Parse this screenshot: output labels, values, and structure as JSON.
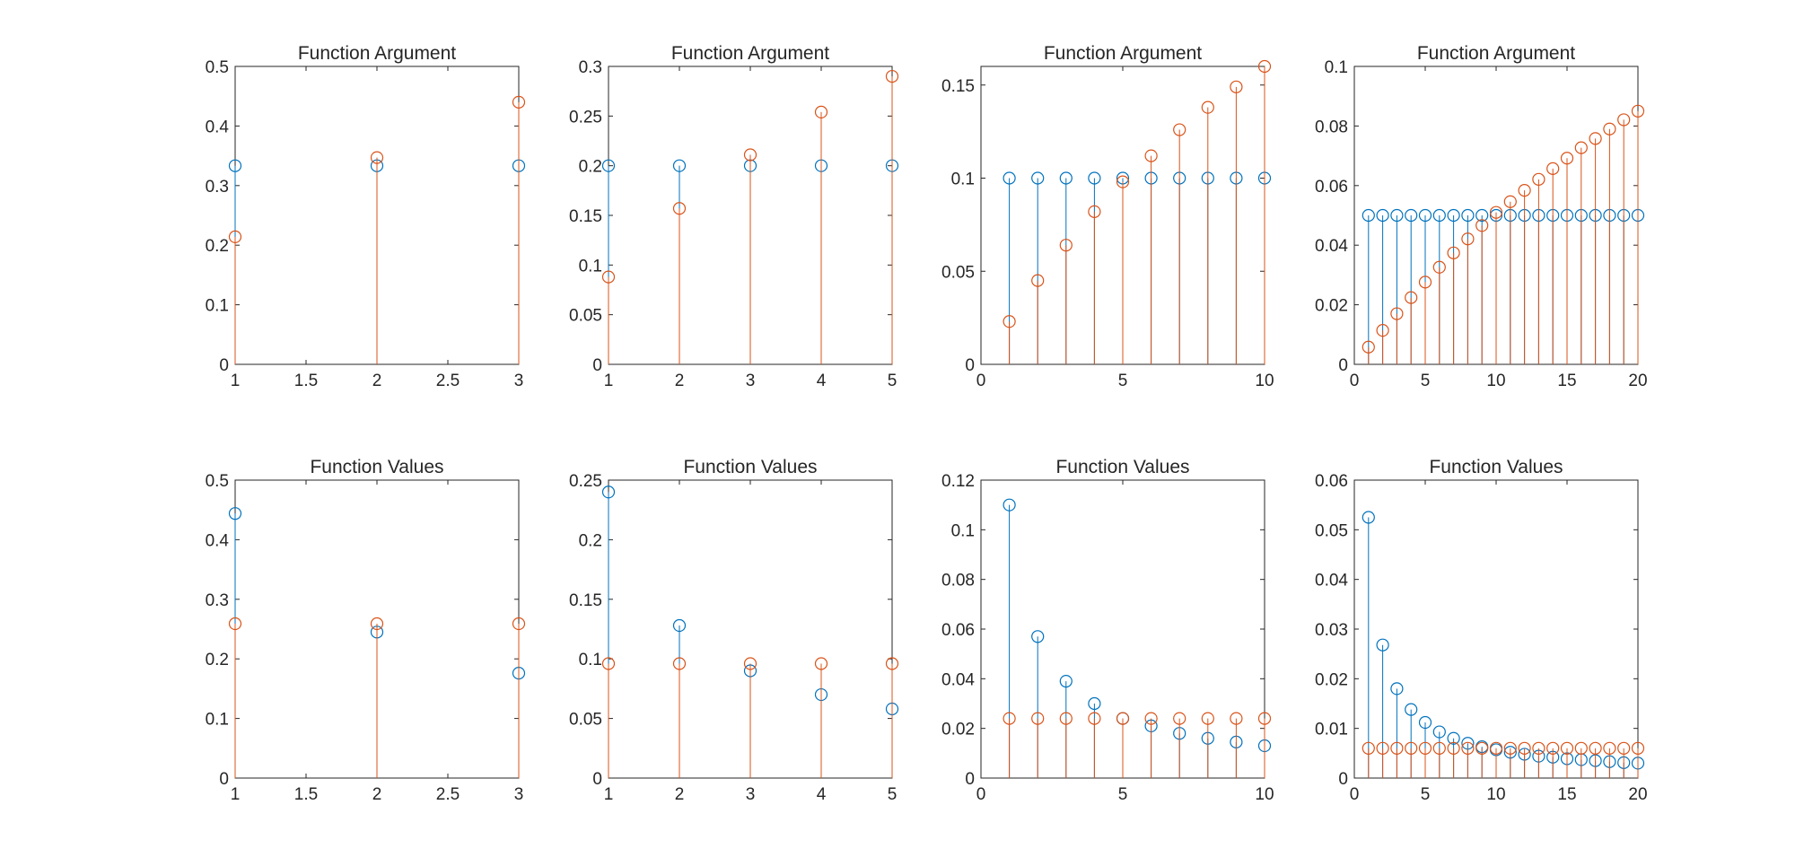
{
  "figure": {
    "colors": {
      "series_a": "#0072BD",
      "series_b": "#D95319",
      "axes": "#262626",
      "background": "#ffffff"
    }
  },
  "chart_data": [
    {
      "type": "stem",
      "title": "Function Argument",
      "xlabel": "",
      "ylabel": "",
      "xlim": [
        1,
        3
      ],
      "ylim": [
        0,
        0.5
      ],
      "xticks": [
        1,
        1.5,
        2,
        2.5,
        3
      ],
      "xtick_labels": [
        "1",
        "1.5",
        "2",
        "2.5",
        "3"
      ],
      "yticks": [
        0,
        0.1,
        0.2,
        0.3,
        0.4,
        0.5
      ],
      "ytick_labels": [
        "0",
        "0.1",
        "0.2",
        "0.3",
        "0.4",
        "0.5"
      ],
      "grid": false,
      "x": [
        1,
        2,
        3
      ],
      "series": [
        {
          "color": "#0072BD",
          "values": [
            0.3333,
            0.3333,
            0.3333
          ]
        },
        {
          "color": "#D95319",
          "values": [
            0.214,
            0.347,
            0.44
          ]
        }
      ]
    },
    {
      "type": "stem",
      "title": "Function Argument",
      "xlabel": "",
      "ylabel": "",
      "xlim": [
        1,
        5
      ],
      "ylim": [
        0,
        0.3
      ],
      "xticks": [
        1,
        2,
        3,
        4,
        5
      ],
      "xtick_labels": [
        "1",
        "2",
        "3",
        "4",
        "5"
      ],
      "yticks": [
        0,
        0.05,
        0.1,
        0.15,
        0.2,
        0.25,
        0.3
      ],
      "ytick_labels": [
        "0",
        "0.05",
        "0.1",
        "0.15",
        "0.2",
        "0.25",
        "0.3"
      ],
      "grid": false,
      "x": [
        1,
        2,
        3,
        4,
        5
      ],
      "series": [
        {
          "color": "#0072BD",
          "values": [
            0.2,
            0.2,
            0.2,
            0.2,
            0.2
          ]
        },
        {
          "color": "#D95319",
          "values": [
            0.088,
            0.157,
            0.211,
            0.254,
            0.29
          ]
        }
      ]
    },
    {
      "type": "stem",
      "title": "Function Argument",
      "xlabel": "",
      "ylabel": "",
      "xlim": [
        0,
        10
      ],
      "ylim": [
        0,
        0.16
      ],
      "xticks": [
        0,
        5,
        10
      ],
      "xtick_labels": [
        "0",
        "5",
        "10"
      ],
      "yticks": [
        0,
        0.05,
        0.1,
        0.15
      ],
      "ytick_labels": [
        "0",
        "0.05",
        "0.1",
        "0.15"
      ],
      "grid": false,
      "x": [
        1,
        2,
        3,
        4,
        5,
        6,
        7,
        8,
        9,
        10
      ],
      "series": [
        {
          "color": "#0072BD",
          "values": [
            0.1,
            0.1,
            0.1,
            0.1,
            0.1,
            0.1,
            0.1,
            0.1,
            0.1,
            0.1
          ]
        },
        {
          "color": "#D95319",
          "values": [
            0.023,
            0.045,
            0.064,
            0.082,
            0.098,
            0.112,
            0.126,
            0.138,
            0.149,
            0.16
          ]
        }
      ]
    },
    {
      "type": "stem",
      "title": "Function Argument",
      "xlabel": "",
      "ylabel": "",
      "xlim": [
        0,
        20
      ],
      "ylim": [
        0,
        0.1
      ],
      "xticks": [
        0,
        5,
        10,
        15,
        20
      ],
      "xtick_labels": [
        "0",
        "5",
        "10",
        "15",
        "20"
      ],
      "yticks": [
        0,
        0.02,
        0.04,
        0.06,
        0.08,
        0.1
      ],
      "ytick_labels": [
        "0",
        "0.02",
        "0.04",
        "0.06",
        "0.08",
        "0.1"
      ],
      "grid": false,
      "x": [
        1,
        2,
        3,
        4,
        5,
        6,
        7,
        8,
        9,
        10,
        11,
        12,
        13,
        14,
        15,
        16,
        17,
        18,
        19,
        20
      ],
      "series": [
        {
          "color": "#0072BD",
          "values": [
            0.05,
            0.05,
            0.05,
            0.05,
            0.05,
            0.05,
            0.05,
            0.05,
            0.05,
            0.05,
            0.05,
            0.05,
            0.05,
            0.05,
            0.05,
            0.05,
            0.05,
            0.05,
            0.05,
            0.05
          ]
        },
        {
          "color": "#D95319",
          "values": [
            0.0058,
            0.0114,
            0.017,
            0.0224,
            0.0276,
            0.0326,
            0.0374,
            0.0421,
            0.0466,
            0.051,
            0.0546,
            0.0584,
            0.0621,
            0.0657,
            0.0692,
            0.0727,
            0.0758,
            0.079,
            0.0821,
            0.085
          ]
        }
      ]
    },
    {
      "type": "stem",
      "title": "Function Values",
      "xlabel": "",
      "ylabel": "",
      "xlim": [
        1,
        3
      ],
      "ylim": [
        0,
        0.5
      ],
      "xticks": [
        1,
        1.5,
        2,
        2.5,
        3
      ],
      "xtick_labels": [
        "1",
        "1.5",
        "2",
        "2.5",
        "3"
      ],
      "yticks": [
        0,
        0.1,
        0.2,
        0.3,
        0.4,
        0.5
      ],
      "ytick_labels": [
        "0",
        "0.1",
        "0.2",
        "0.3",
        "0.4",
        "0.5"
      ],
      "grid": false,
      "x": [
        1,
        2,
        3
      ],
      "series": [
        {
          "color": "#0072BD",
          "values": [
            0.444,
            0.245,
            0.176
          ]
        },
        {
          "color": "#D95319",
          "values": [
            0.259,
            0.259,
            0.259
          ]
        }
      ]
    },
    {
      "type": "stem",
      "title": "Function Values",
      "xlabel": "",
      "ylabel": "",
      "xlim": [
        1,
        5
      ],
      "ylim": [
        0,
        0.25
      ],
      "xticks": [
        1,
        2,
        3,
        4,
        5
      ],
      "xtick_labels": [
        "1",
        "2",
        "3",
        "4",
        "5"
      ],
      "yticks": [
        0,
        0.05,
        0.1,
        0.15,
        0.2,
        0.25
      ],
      "ytick_labels": [
        "0",
        "0.05",
        "0.1",
        "0.15",
        "0.2",
        "0.25"
      ],
      "grid": false,
      "x": [
        1,
        2,
        3,
        4,
        5
      ],
      "series": [
        {
          "color": "#0072BD",
          "values": [
            0.24,
            0.128,
            0.09,
            0.07,
            0.058
          ]
        },
        {
          "color": "#D95319",
          "values": [
            0.096,
            0.096,
            0.096,
            0.096,
            0.096
          ]
        }
      ]
    },
    {
      "type": "stem",
      "title": "Function Values",
      "xlabel": "",
      "ylabel": "",
      "xlim": [
        0,
        10
      ],
      "ylim": [
        0,
        0.12
      ],
      "xticks": [
        0,
        5,
        10
      ],
      "xtick_labels": [
        "0",
        "5",
        "10"
      ],
      "yticks": [
        0,
        0.02,
        0.04,
        0.06,
        0.08,
        0.1,
        0.12
      ],
      "ytick_labels": [
        "0",
        "0.02",
        "0.04",
        "0.06",
        "0.08",
        "0.1",
        "0.12"
      ],
      "grid": false,
      "x": [
        1,
        2,
        3,
        4,
        5,
        6,
        7,
        8,
        9,
        10
      ],
      "series": [
        {
          "color": "#0072BD",
          "values": [
            0.11,
            0.057,
            0.039,
            0.03,
            0.024,
            0.021,
            0.018,
            0.016,
            0.0145,
            0.013
          ]
        },
        {
          "color": "#D95319",
          "values": [
            0.024,
            0.024,
            0.024,
            0.024,
            0.024,
            0.024,
            0.024,
            0.024,
            0.024,
            0.024
          ]
        }
      ]
    },
    {
      "type": "stem",
      "title": "Function Values",
      "xlabel": "",
      "ylabel": "",
      "xlim": [
        0,
        20
      ],
      "ylim": [
        0,
        0.06
      ],
      "xticks": [
        0,
        5,
        10,
        15,
        20
      ],
      "xtick_labels": [
        "0",
        "5",
        "10",
        "15",
        "20"
      ],
      "yticks": [
        0,
        0.01,
        0.02,
        0.03,
        0.04,
        0.05,
        0.06
      ],
      "ytick_labels": [
        "0",
        "0.01",
        "0.02",
        "0.03",
        "0.04",
        "0.05",
        "0.06"
      ],
      "grid": false,
      "x": [
        1,
        2,
        3,
        4,
        5,
        6,
        7,
        8,
        9,
        10,
        11,
        12,
        13,
        14,
        15,
        16,
        17,
        18,
        19,
        20
      ],
      "series": [
        {
          "color": "#0072BD",
          "values": [
            0.0525,
            0.0268,
            0.018,
            0.0138,
            0.0112,
            0.0093,
            0.008,
            0.007,
            0.0063,
            0.0057,
            0.0052,
            0.0048,
            0.0044,
            0.0042,
            0.0039,
            0.0037,
            0.0035,
            0.0033,
            0.0031,
            0.003
          ]
        },
        {
          "color": "#D95319",
          "values": [
            0.006,
            0.006,
            0.006,
            0.006,
            0.006,
            0.006,
            0.006,
            0.006,
            0.006,
            0.006,
            0.006,
            0.006,
            0.006,
            0.006,
            0.006,
            0.006,
            0.006,
            0.006,
            0.006,
            0.006
          ]
        }
      ]
    }
  ]
}
